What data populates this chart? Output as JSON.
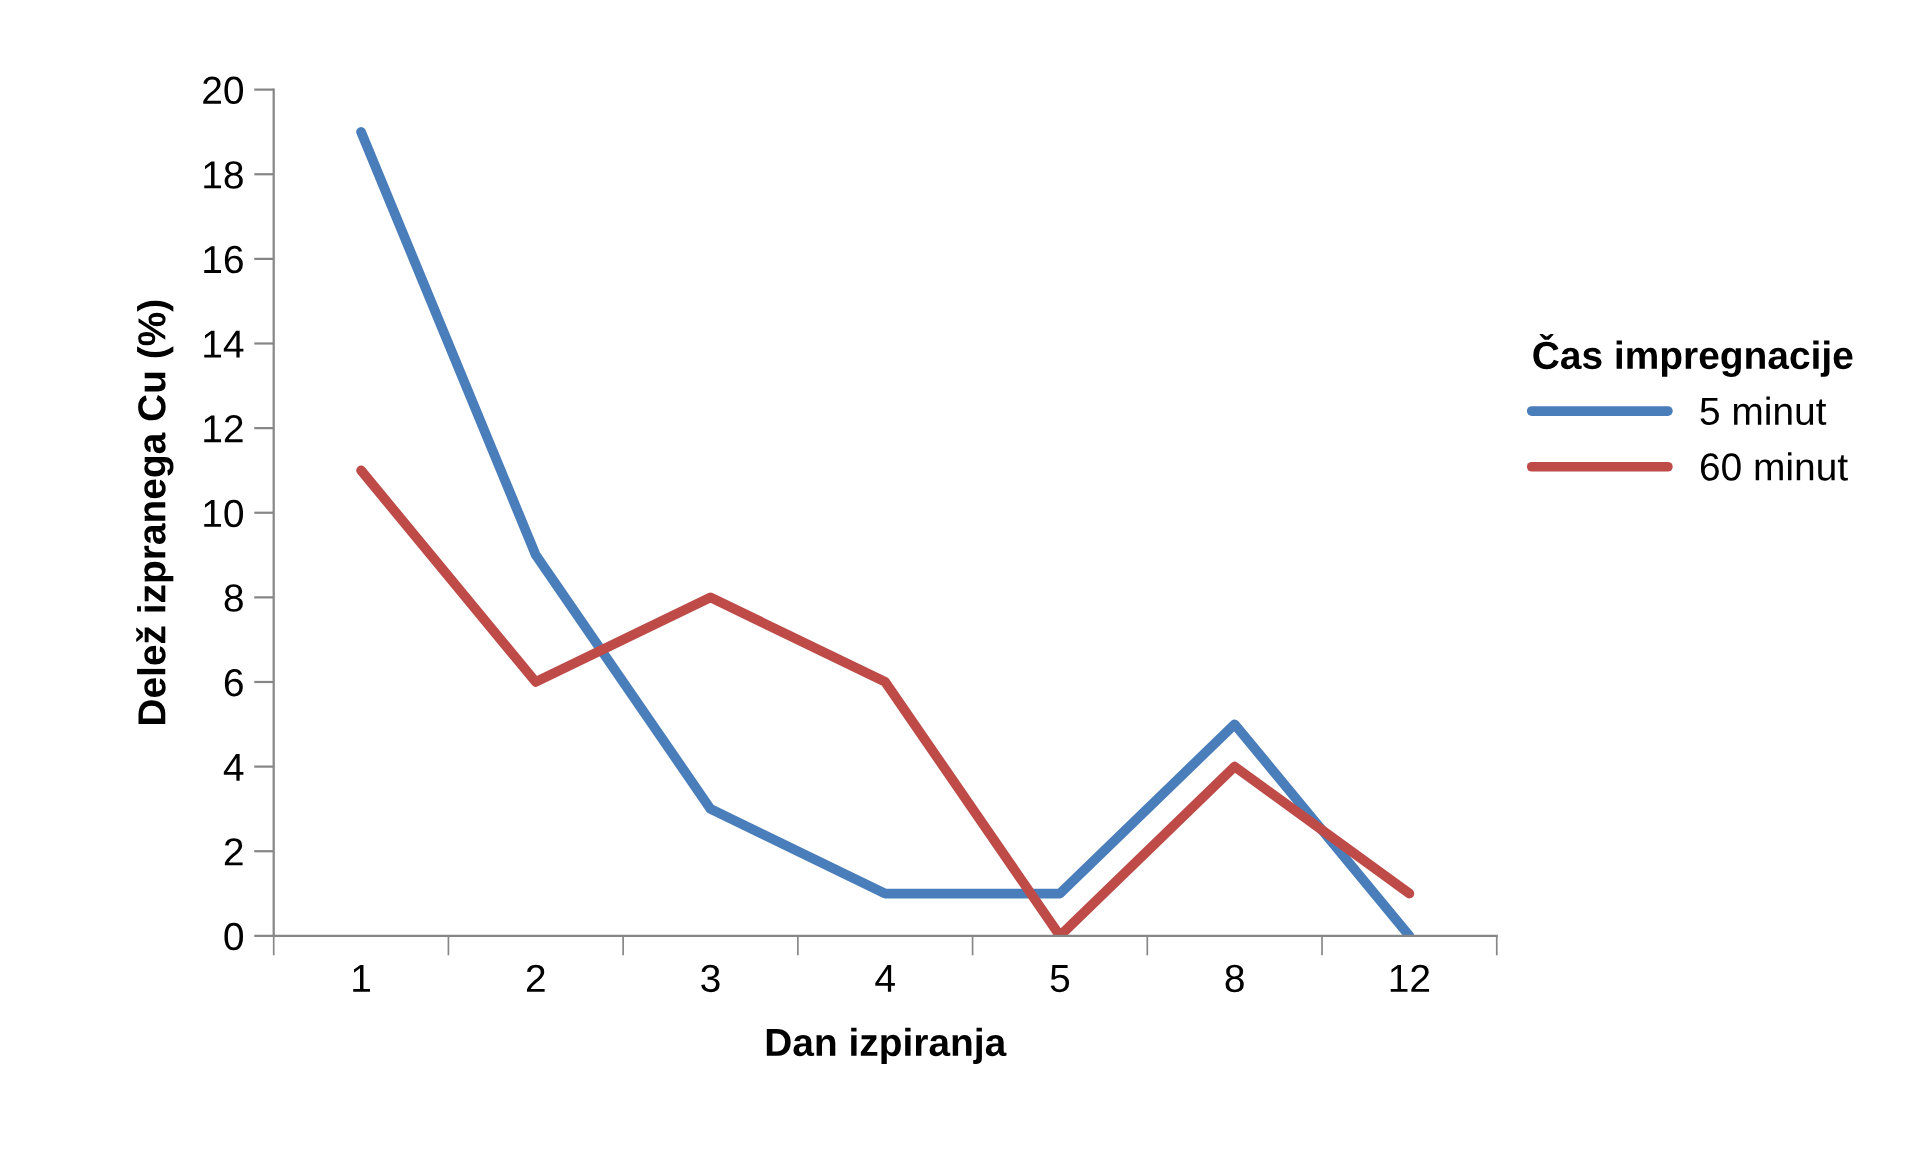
{
  "chart_data": {
    "type": "line",
    "xlabel": "Dan izpiranja",
    "ylabel": "Delež izpranega Cu (%)",
    "legend_title": "Čas impregnacije",
    "categories": [
      "1",
      "2",
      "3",
      "4",
      "5",
      "8",
      "12"
    ],
    "series": [
      {
        "name": "5 minut",
        "color": "#4a7ebb",
        "values": [
          19,
          9,
          3,
          1,
          1,
          5,
          0
        ]
      },
      {
        "name": "60 minut",
        "color": "#be4b48",
        "values": [
          11,
          6,
          8,
          6,
          0,
          4,
          1
        ]
      }
    ],
    "ylim": [
      0,
      20
    ],
    "yticks": [
      0,
      2,
      4,
      6,
      8,
      10,
      12,
      14,
      16,
      18,
      20
    ],
    "grid": false,
    "legend": "right",
    "marker": "none",
    "line_style": "solid"
  }
}
